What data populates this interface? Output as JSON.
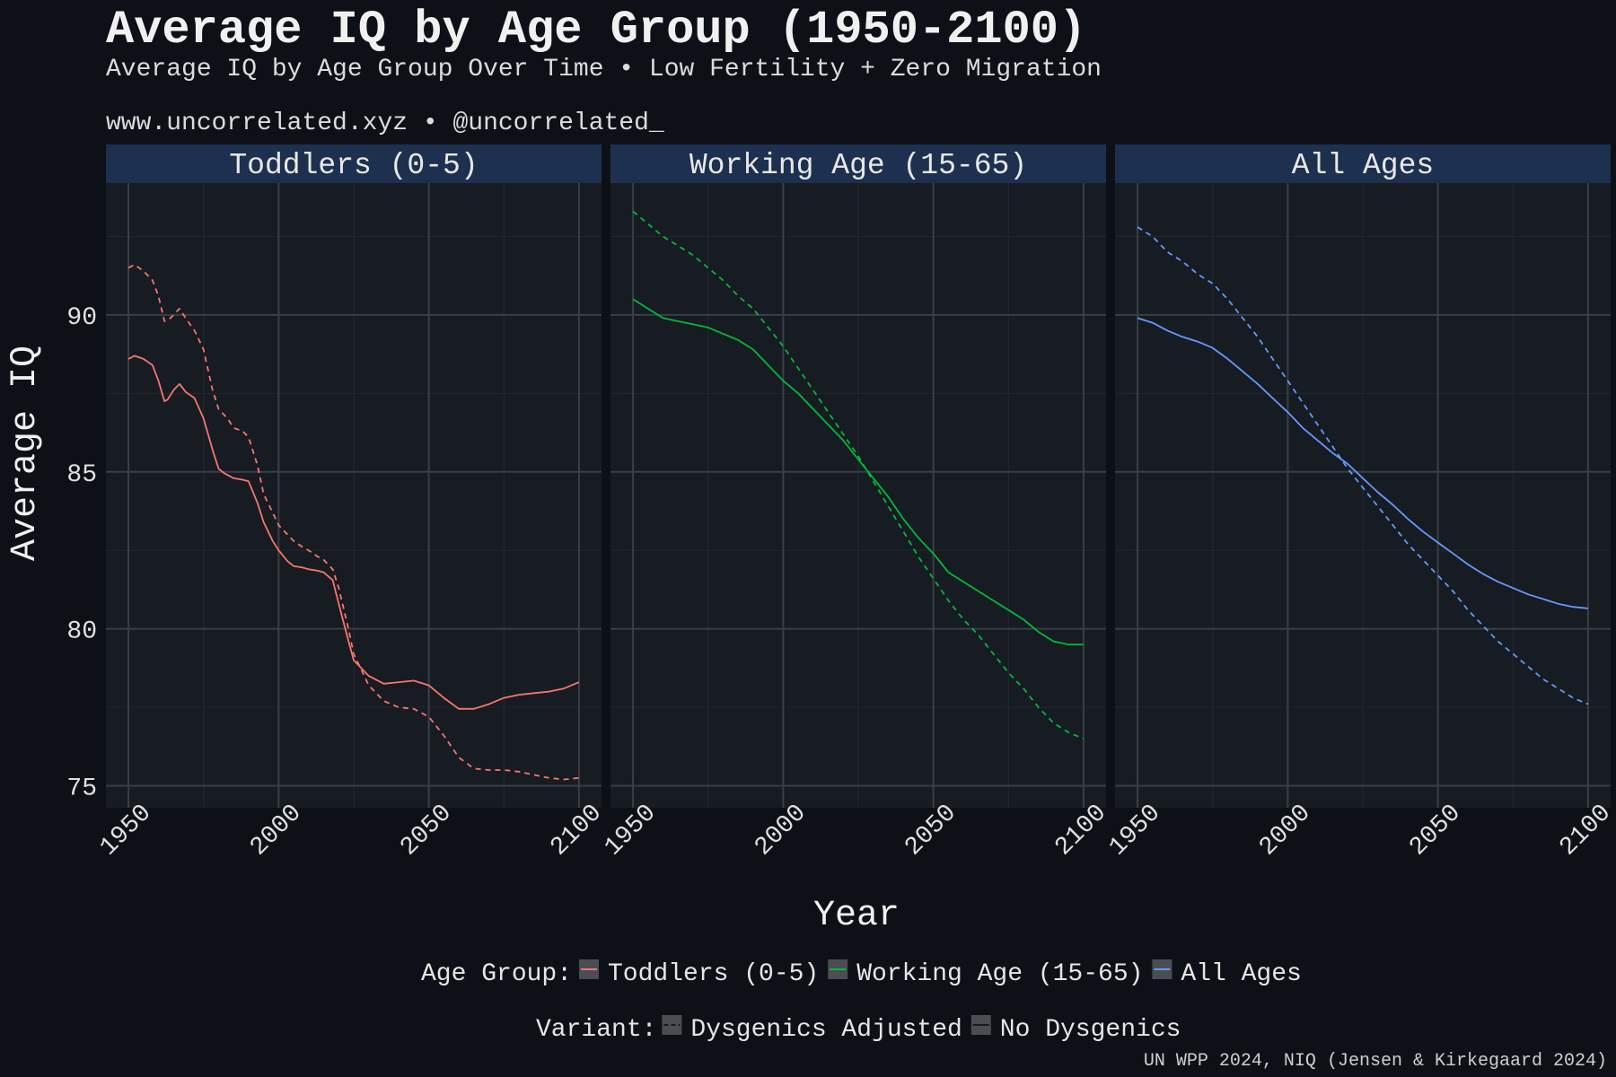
{
  "chart_data": {
    "type": "line",
    "title": "Average IQ by Age Group (1950-2100)",
    "subtitle": "Average IQ by Age Group Over Time • Low Fertility + Zero Migration",
    "source_line": "www.uncorrelated.xyz • @uncorrelated_",
    "caption": "UN WPP 2024, NIQ (Jensen & Kirkegaard 2024)",
    "xlabel": "Year",
    "ylabel": "Average IQ",
    "xlim": [
      1942.5,
      2107.5
    ],
    "ylim": [
      74.3,
      94.2
    ],
    "x_ticks": [
      1950,
      2000,
      2050,
      2100
    ],
    "y_ticks": [
      75,
      80,
      85,
      90
    ],
    "grid": true,
    "legend_position": "bottom",
    "legend_age_title": "Age Group:",
    "legend_variant_title": "Variant:",
    "variants": [
      {
        "name": "Dysgenics Adjusted",
        "linetype": "dashed"
      },
      {
        "name": "No Dysgenics",
        "linetype": "solid"
      }
    ],
    "panels": [
      {
        "name": "Toddlers (0-5)",
        "color": "#F8766D",
        "series": [
          {
            "variant": "Dysgenics Adjusted",
            "x": [
              1950,
              1952,
              1955,
              1958,
              1960,
              1962,
              1964,
              1966,
              1967,
              1969,
              1972,
              1975,
              1978,
              1980,
              1983,
              1985,
              1988,
              1990,
              1993,
              1995,
              1998,
              2000,
              2003,
              2005,
              2008,
              2010,
              2013,
              2015,
              2018,
              2020,
              2023,
              2025,
              2030,
              2035,
              2040,
              2045,
              2050,
              2055,
              2060,
              2065,
              2070,
              2075,
              2080,
              2085,
              2090,
              2095,
              2100
            ],
            "y": [
              91.5,
              91.6,
              91.4,
              91.1,
              90.6,
              89.8,
              89.9,
              90.1,
              90.2,
              89.9,
              89.5,
              88.9,
              87.6,
              87.0,
              86.7,
              86.4,
              86.3,
              86.1,
              85.2,
              84.3,
              83.7,
              83.3,
              83.0,
              82.8,
              82.6,
              82.5,
              82.3,
              82.2,
              81.9,
              81.3,
              80.1,
              79.2,
              78.2,
              77.7,
              77.5,
              77.45,
              77.2,
              76.6,
              75.9,
              75.55,
              75.5,
              75.5,
              75.45,
              75.35,
              75.25,
              75.2,
              75.25
            ]
          },
          {
            "variant": "No Dysgenics",
            "x": [
              1950,
              1952,
              1955,
              1958,
              1960,
              1962,
              1963,
              1965,
              1967,
              1969,
              1972,
              1975,
              1978,
              1980,
              1982,
              1985,
              1988,
              1990,
              1993,
              1995,
              1998,
              2000,
              2003,
              2005,
              2008,
              2010,
              2013,
              2015,
              2018,
              2020,
              2023,
              2025,
              2030,
              2035,
              2040,
              2045,
              2050,
              2055,
              2060,
              2065,
              2070,
              2075,
              2080,
              2085,
              2090,
              2095,
              2100
            ],
            "y": [
              88.6,
              88.7,
              88.6,
              88.4,
              87.9,
              87.25,
              87.3,
              87.6,
              87.8,
              87.55,
              87.35,
              86.7,
              85.7,
              85.1,
              84.95,
              84.8,
              84.75,
              84.7,
              84.0,
              83.4,
              82.8,
              82.5,
              82.15,
              82.0,
              81.95,
              81.9,
              81.85,
              81.8,
              81.55,
              80.8,
              79.7,
              79.0,
              78.5,
              78.25,
              78.3,
              78.35,
              78.2,
              77.8,
              77.45,
              77.45,
              77.6,
              77.8,
              77.9,
              77.95,
              78.0,
              78.1,
              78.3
            ]
          }
        ]
      },
      {
        "name": "Working Age (15-65)",
        "color": "#00BA38",
        "series": [
          {
            "variant": "Dysgenics Adjusted",
            "x": [
              1950,
              1955,
              1960,
              1965,
              1970,
              1975,
              1980,
              1985,
              1990,
              1995,
              2000,
              2005,
              2010,
              2015,
              2020,
              2025,
              2030,
              2035,
              2040,
              2045,
              2050,
              2055,
              2060,
              2065,
              2070,
              2075,
              2080,
              2085,
              2090,
              2095,
              2100
            ],
            "y": [
              93.3,
              92.9,
              92.5,
              92.2,
              91.9,
              91.5,
              91.1,
              90.6,
              90.2,
              89.6,
              89.0,
              88.3,
              87.6,
              86.9,
              86.2,
              85.5,
              84.7,
              83.9,
              83.1,
              82.3,
              81.6,
              80.9,
              80.3,
              79.8,
              79.2,
              78.6,
              78.1,
              77.5,
              77.0,
              76.7,
              76.5
            ]
          },
          {
            "variant": "No Dysgenics",
            "x": [
              1950,
              1955,
              1960,
              1965,
              1970,
              1975,
              1980,
              1985,
              1990,
              1995,
              2000,
              2005,
              2010,
              2015,
              2020,
              2025,
              2030,
              2035,
              2040,
              2045,
              2050,
              2055,
              2060,
              2065,
              2070,
              2075,
              2080,
              2085,
              2090,
              2095,
              2100
            ],
            "y": [
              90.5,
              90.2,
              89.9,
              89.8,
              89.7,
              89.6,
              89.4,
              89.2,
              88.9,
              88.4,
              87.9,
              87.5,
              87.0,
              86.5,
              86.0,
              85.4,
              84.8,
              84.2,
              83.5,
              82.9,
              82.4,
              81.8,
              81.5,
              81.2,
              80.9,
              80.6,
              80.3,
              79.9,
              79.6,
              79.5,
              79.5
            ]
          }
        ]
      },
      {
        "name": "All Ages",
        "color": "#619CFF",
        "series": [
          {
            "variant": "Dysgenics Adjusted",
            "x": [
              1950,
              1955,
              1960,
              1965,
              1970,
              1975,
              1980,
              1985,
              1990,
              1995,
              2000,
              2005,
              2010,
              2015,
              2020,
              2025,
              2030,
              2035,
              2040,
              2045,
              2050,
              2055,
              2060,
              2065,
              2070,
              2075,
              2080,
              2085,
              2090,
              2095,
              2100
            ],
            "y": [
              92.8,
              92.5,
              92.0,
              91.7,
              91.3,
              91.0,
              90.5,
              89.9,
              89.3,
              88.6,
              87.9,
              87.2,
              86.5,
              85.8,
              85.1,
              84.5,
              83.9,
              83.3,
              82.7,
              82.2,
              81.7,
              81.2,
              80.6,
              80.1,
              79.6,
              79.2,
              78.8,
              78.4,
              78.1,
              77.8,
              77.6
            ]
          },
          {
            "variant": "No Dysgenics",
            "x": [
              1950,
              1955,
              1960,
              1965,
              1970,
              1975,
              1980,
              1985,
              1990,
              1995,
              2000,
              2005,
              2010,
              2015,
              2020,
              2025,
              2030,
              2035,
              2040,
              2045,
              2050,
              2055,
              2060,
              2065,
              2070,
              2075,
              2080,
              2085,
              2090,
              2095,
              2100
            ],
            "y": [
              89.9,
              89.75,
              89.5,
              89.3,
              89.15,
              88.95,
              88.6,
              88.2,
              87.8,
              87.35,
              86.9,
              86.4,
              86.0,
              85.6,
              85.25,
              84.8,
              84.35,
              83.95,
              83.5,
              83.1,
              82.75,
              82.4,
              82.05,
              81.75,
              81.5,
              81.3,
              81.1,
              80.95,
              80.8,
              80.7,
              80.65
            ]
          }
        ]
      }
    ]
  },
  "style": {
    "background": "#0d1117",
    "panel_background": "#171b22",
    "strip_background": "#1e3050",
    "grid_major": "#3a3f47",
    "grid_minor": "#22262d",
    "legend_key_background": "#4a4d52"
  }
}
